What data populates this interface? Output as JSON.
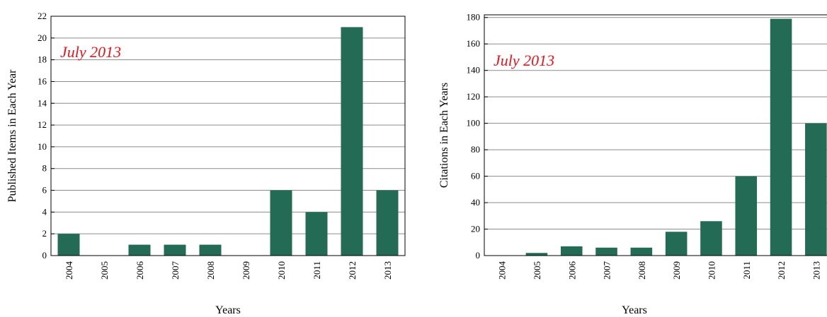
{
  "chart_data": [
    {
      "type": "bar",
      "annotation": "July 2013",
      "xlabel": "Years",
      "ylabel": "Published Items in Each Year",
      "categories": [
        "2004",
        "2005",
        "2006",
        "2007",
        "2008",
        "2009",
        "2010",
        "2011",
        "2012",
        "2013"
      ],
      "values": [
        2,
        0,
        1,
        1,
        1,
        0,
        6,
        4,
        21,
        6
      ],
      "color": "#246b56",
      "ylim": [
        0,
        22
      ],
      "yticks": [
        0,
        2,
        4,
        6,
        8,
        10,
        12,
        14,
        16,
        18,
        20,
        22
      ],
      "grid": true
    },
    {
      "type": "bar",
      "annotation": "July 2013",
      "xlabel": "Years",
      "ylabel": "Citations in Each Years",
      "categories": [
        "2004",
        "2005",
        "2006",
        "2007",
        "2008",
        "2009",
        "2010",
        "2011",
        "2012",
        "2013"
      ],
      "values": [
        0,
        2,
        7,
        6,
        6,
        18,
        26,
        60,
        179,
        100
      ],
      "color": "#246b56",
      "ylim": [
        0,
        182
      ],
      "yticks": [
        0,
        20,
        40,
        60,
        80,
        100,
        120,
        140,
        160,
        180
      ],
      "grid": true
    }
  ]
}
